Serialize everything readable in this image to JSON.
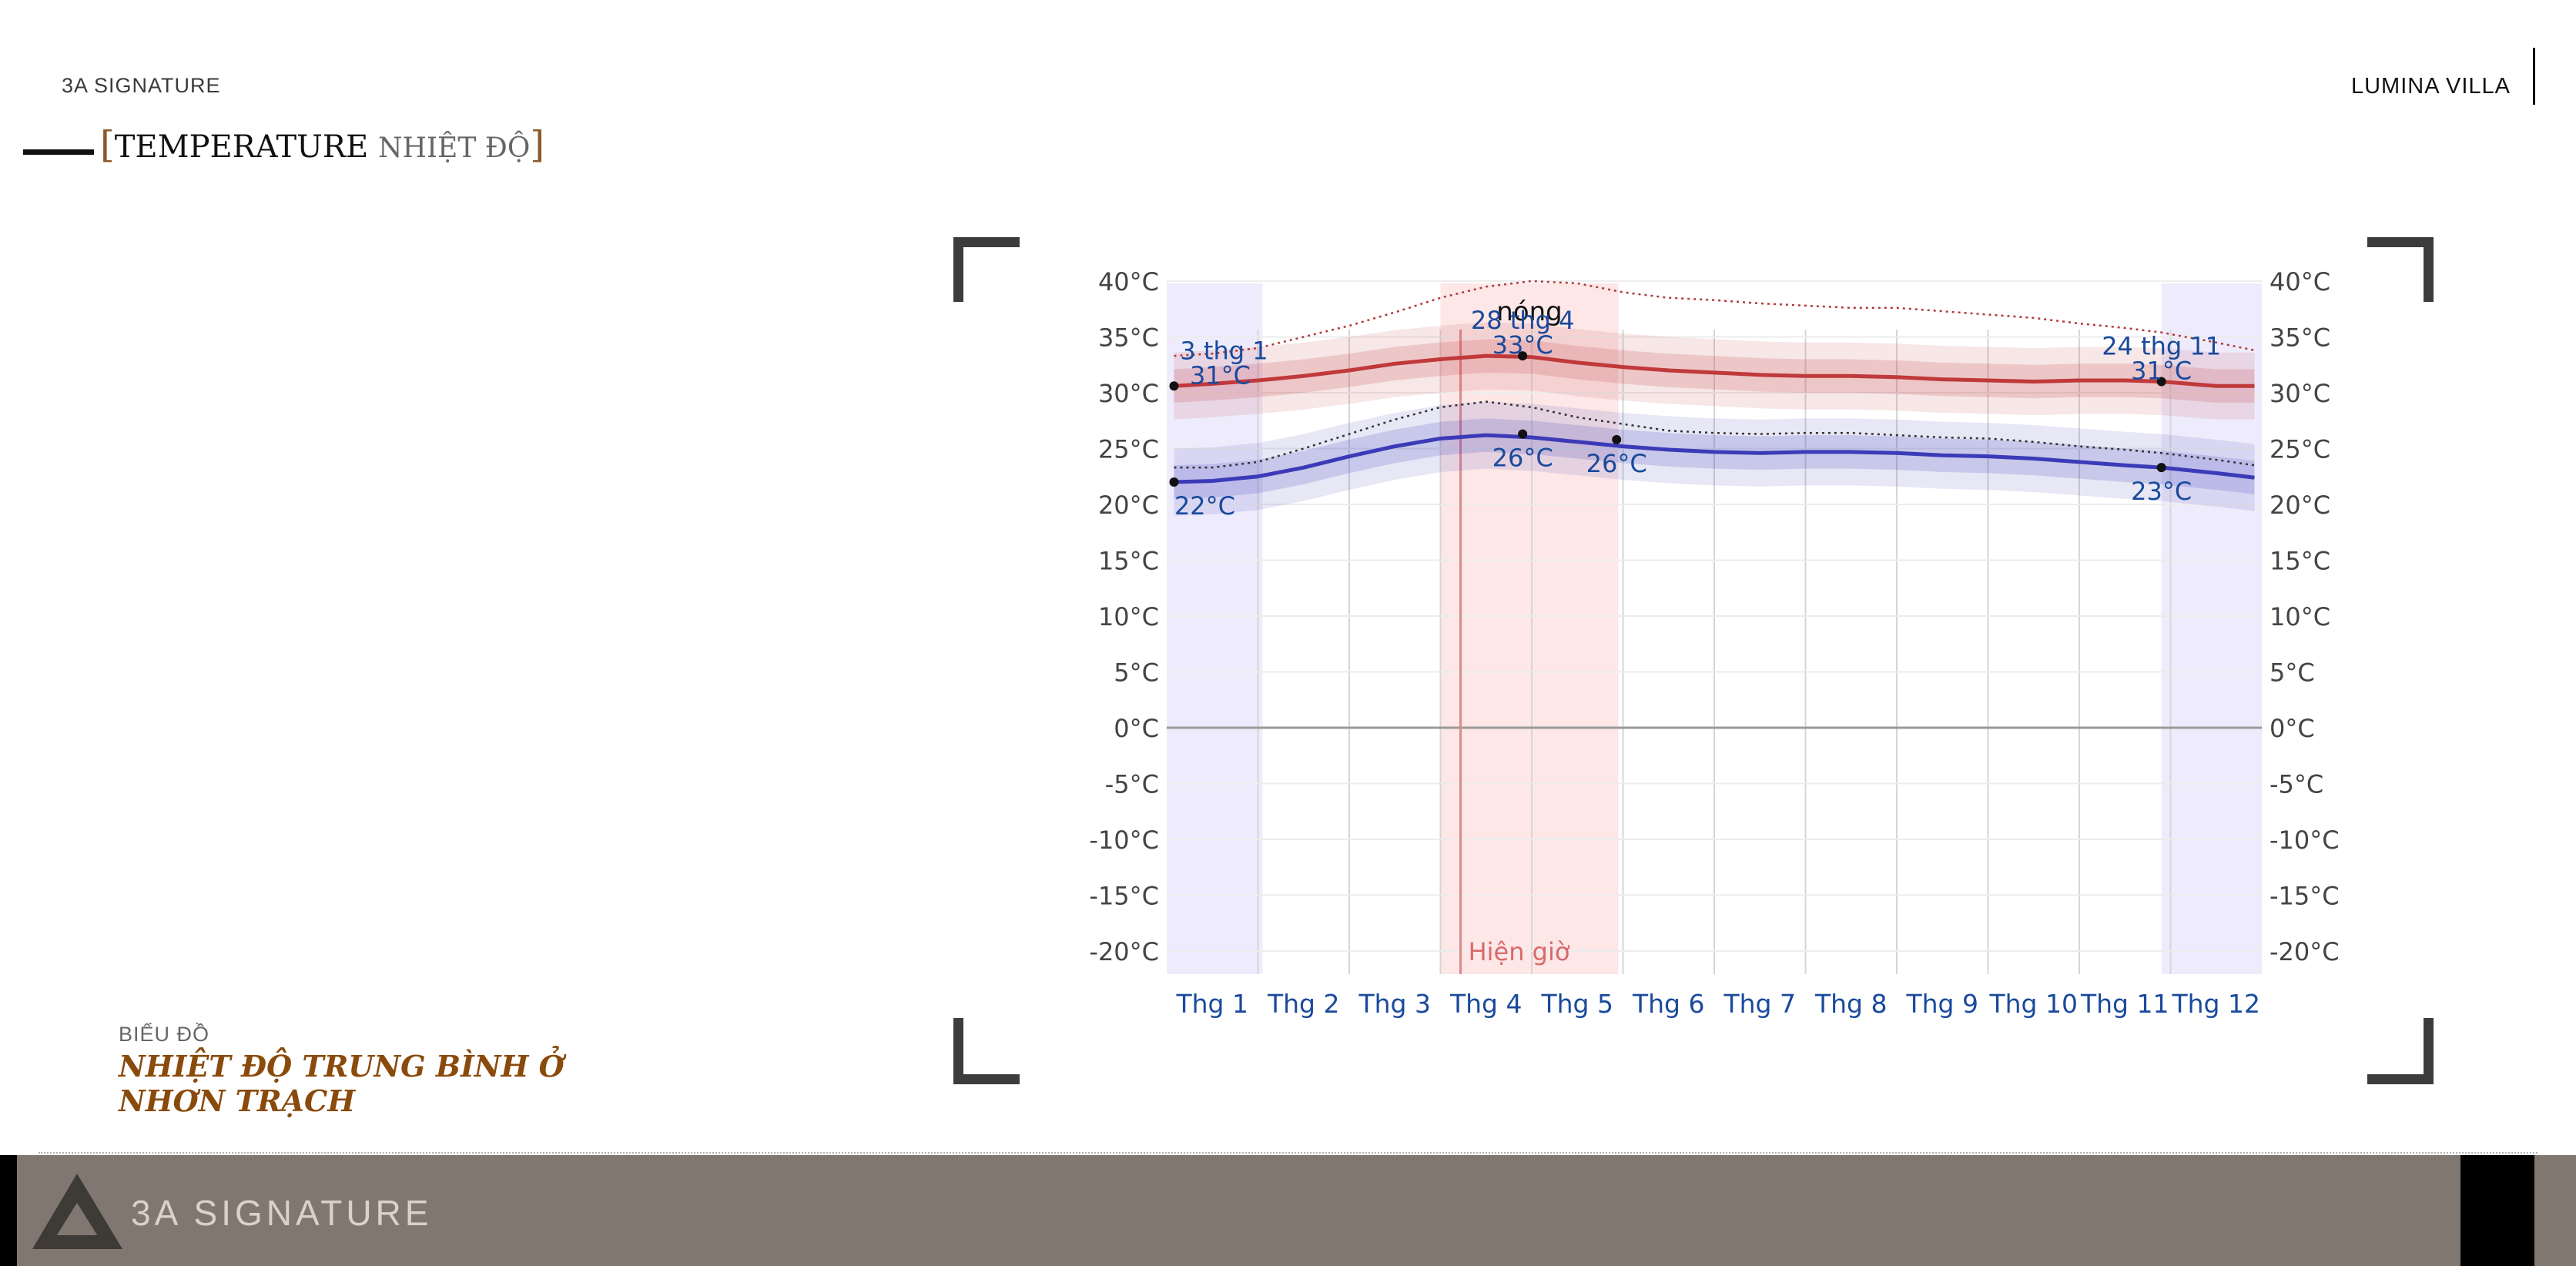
{
  "header": {
    "brand": "3A SIGNATURE",
    "project": "LUMINA VILLA",
    "title_open": "[",
    "title_en": "TEMPERATURE",
    "title_vi": "NHIỆT ĐỘ",
    "title_close": "]"
  },
  "caption": {
    "label": "BIỂU ĐỒ",
    "title": "NHIỆT ĐỘ TRUNG BÌNH Ở NHƠN TRẠCH"
  },
  "footer": {
    "brand": "3A SIGNATURE"
  },
  "colors": {
    "high": "#c0393b",
    "low": "#3b3bb8",
    "hot_band": "#fde4e4",
    "cool_band": "#ebe9fc",
    "label": "#1a4a9c",
    "brown": "#8a4a0c"
  },
  "chart_data": {
    "type": "line",
    "title": "",
    "season_label": "nóng",
    "now_label": "Hiện giờ",
    "now_position": 3.22,
    "hot_season": [
      3.0,
      4.95
    ],
    "cool_seasons": [
      [
        0,
        1.05
      ],
      [
        10.9,
        12
      ]
    ],
    "categories": [
      "Thg 1",
      "Thg 2",
      "Thg 3",
      "Thg 4",
      "Thg 5",
      "Thg 6",
      "Thg 7",
      "Thg 8",
      "Thg 9",
      "Thg 10",
      "Thg 11",
      "Thg 12"
    ],
    "ylim": [
      -20,
      40
    ],
    "yticks": [
      "40°C",
      "35°C",
      "30°C",
      "25°C",
      "20°C",
      "15°C",
      "10°C",
      "5°C",
      "0°C",
      "-5°C",
      "-10°C",
      "-15°C",
      "-20°C"
    ],
    "x": [
      0.08,
      0.5,
      1,
      1.5,
      2,
      2.5,
      3,
      3.5,
      4,
      4.5,
      5,
      5.5,
      6,
      6.5,
      7,
      7.5,
      8,
      8.5,
      9,
      9.5,
      10,
      10.5,
      10.9,
      11.5,
      11.92
    ],
    "series": [
      {
        "values": [
          30.6,
          30.8,
          31.1,
          31.5,
          32.0,
          32.6,
          33.0,
          33.3,
          33.2,
          32.7,
          32.3,
          32.0,
          31.8,
          31.6,
          31.5,
          31.5,
          31.4,
          31.2,
          31.1,
          31.0,
          31.1,
          31.1,
          31.0,
          30.6,
          30.6
        ],
        "p90": [
          33.3,
          33.5,
          34.0,
          35.0,
          36.0,
          37.2,
          38.5,
          39.5,
          40.0,
          39.8,
          39.0,
          38.5,
          38.3,
          38.0,
          37.8,
          37.6,
          37.6,
          37.3,
          37.0,
          36.7,
          36.2,
          35.8,
          35.4,
          34.5,
          33.8
        ]
      },
      {
        "values": [
          22.0,
          22.1,
          22.5,
          23.3,
          24.3,
          25.2,
          25.9,
          26.2,
          26.0,
          25.6,
          25.2,
          24.9,
          24.7,
          24.6,
          24.7,
          24.7,
          24.6,
          24.4,
          24.3,
          24.1,
          23.8,
          23.5,
          23.3,
          22.8,
          22.4
        ],
        "p90": [
          23.3,
          23.3,
          23.8,
          25.0,
          26.3,
          27.6,
          28.7,
          29.2,
          28.7,
          27.8,
          27.2,
          26.6,
          26.4,
          26.3,
          26.4,
          26.4,
          26.2,
          26.0,
          25.9,
          25.6,
          25.2,
          24.9,
          24.6,
          24.0,
          23.5
        ]
      }
    ],
    "annotations": [
      {
        "x": 0.08,
        "y": 30.6,
        "text": "3 thg 1",
        "text2": "31°C",
        "pos": "above"
      },
      {
        "x": 0.08,
        "y": 22.0,
        "text": "22°C",
        "text2": "",
        "pos": "below"
      },
      {
        "x": 3.9,
        "y": 33.3,
        "text": "28 thg 4",
        "text2": "33°C",
        "pos": "above"
      },
      {
        "x": 3.9,
        "y": 26.3,
        "text": "26°C",
        "text2": "",
        "pos": "below"
      },
      {
        "x": 4.93,
        "y": 25.8,
        "text": "26°C",
        "text2": "",
        "pos": "below"
      },
      {
        "x": 10.9,
        "y": 31.0,
        "text": "24 thg 11",
        "text2": "31°C",
        "pos": "above"
      },
      {
        "x": 10.9,
        "y": 23.3,
        "text": "23°C",
        "text2": "",
        "pos": "below"
      }
    ]
  }
}
